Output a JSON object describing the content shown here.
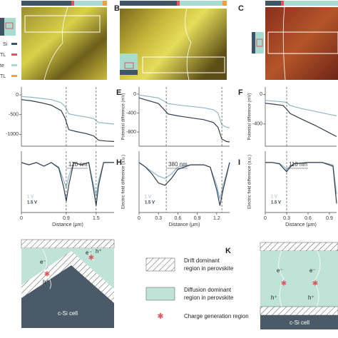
{
  "panel_labels": [
    "B",
    "C",
    "E",
    "F",
    "H",
    "I",
    "K"
  ],
  "layer_legend": [
    "Si",
    "TL",
    "te",
    "TL"
  ],
  "diagram": {
    "left": {
      "cell": "c-Si cell",
      "carriers": [
        "e⁻",
        "h⁺",
        "e⁻",
        "h⁺"
      ]
    },
    "right": {
      "cell": "c-Si cell",
      "carriers": [
        "e⁻",
        "h⁺",
        "e⁻",
        "h⁺"
      ]
    },
    "legend": [
      [
        "Drift dominant",
        "region in perovskite"
      ],
      [
        "Diffusion dominant",
        "region in perovskite"
      ],
      [
        "Charge generation region"
      ]
    ]
  },
  "chart_data": [
    {
      "type": "line",
      "x": [
        0,
        0.2,
        0.4,
        0.6,
        0.8,
        0.88,
        0.95,
        1.1,
        1.3,
        1.45,
        1.55,
        1.7,
        1.86
      ],
      "series": [
        {
          "color": "#8fb7c9",
          "values": [
            -40,
            -60,
            -90,
            -120,
            -200,
            -300,
            -480,
            -520,
            -560,
            -600,
            -700,
            -720,
            -740
          ]
        },
        {
          "color": "#2f3d4f",
          "values": [
            -120,
            -150,
            -200,
            -260,
            -400,
            -600,
            -880,
            -930,
            -980,
            -1040,
            -1150,
            -1170,
            -1180
          ]
        }
      ],
      "xlim": [
        0,
        1.86
      ],
      "ylim": [
        -1300,
        200
      ],
      "yticks": [
        0,
        -500,
        -1000
      ],
      "markers": [
        0.9,
        1.5
      ]
    },
    {
      "type": "line",
      "ylabel": "Potential difference (mV)",
      "x": [
        0,
        0.1,
        0.3,
        0.45,
        0.6,
        0.8,
        1.0,
        1.15,
        1.22,
        1.28,
        1.35,
        1.4
      ],
      "series": [
        {
          "color": "#8fb7c9",
          "values": [
            -20,
            -40,
            -80,
            -200,
            -230,
            -260,
            -290,
            -330,
            -400,
            -650,
            -700,
            -710
          ]
        },
        {
          "color": "#2f3d4f",
          "values": [
            -80,
            -120,
            -200,
            -420,
            -460,
            -500,
            -540,
            -600,
            -700,
            -950,
            -1000,
            -1010
          ]
        }
      ],
      "xlim": [
        0,
        1.4
      ],
      "ylim": [
        -1100,
        150
      ],
      "yticks": [
        0,
        -400,
        -800
      ],
      "markers": [
        0.42,
        1.28
      ]
    },
    {
      "type": "line",
      "ylabel": "Potential difference (mV)",
      "x": [
        0,
        0.1,
        0.25,
        0.3,
        0.35,
        0.5,
        0.7,
        0.9,
        1.0
      ],
      "series": [
        {
          "color": "#8fb7c9",
          "values": [
            -80,
            -90,
            -100,
            -110,
            -150,
            -190,
            -230,
            -270,
            -290
          ]
        },
        {
          "color": "#2f3d4f",
          "values": [
            -120,
            -130,
            -150,
            -200,
            -260,
            -330,
            -420,
            -520,
            -570
          ]
        }
      ],
      "xlim": [
        0,
        1.0
      ],
      "ylim": [
        -700,
        100
      ],
      "yticks": [
        0,
        -400
      ],
      "markers": [
        0.3
      ]
    },
    {
      "type": "line",
      "xlabel": "Distance (μm)",
      "annotation": "120 nm",
      "x": [
        0,
        0.15,
        0.3,
        0.45,
        0.6,
        0.75,
        0.85,
        0.9,
        0.95,
        1.05,
        1.2,
        1.35,
        1.45,
        1.5,
        1.55,
        1.65,
        1.86
      ],
      "series": [
        {
          "name": "1 V",
          "color": "#8fb7c9",
          "values": [
            0,
            -0.05,
            0,
            -0.08,
            0,
            -0.1,
            -0.4,
            -0.55,
            -0.3,
            0,
            -0.05,
            0,
            -0.5,
            -0.75,
            -0.4,
            0,
            0
          ]
        },
        {
          "name": "1.5 V",
          "color": "#2f3d4f",
          "values": [
            0,
            -0.05,
            0,
            -0.08,
            0,
            -0.12,
            -0.55,
            -0.85,
            -0.5,
            0,
            -0.05,
            0,
            -0.6,
            -0.95,
            -0.5,
            0,
            0
          ]
        }
      ],
      "xlim": [
        0,
        1.86
      ],
      "ylim": [
        -1.1,
        0.25
      ],
      "xticks": [
        0,
        0.9,
        1.5
      ],
      "markers": [
        0.9,
        1.5
      ]
    },
    {
      "type": "line",
      "ylabel": "Electric field difference (a.u.)",
      "xlabel": "Distance (μm)",
      "annotation": "380 nm",
      "x": [
        0,
        0.1,
        0.2,
        0.3,
        0.4,
        0.5,
        0.6,
        0.8,
        1.0,
        1.1,
        1.2,
        1.25,
        1.3,
        1.4
      ],
      "series": [
        {
          "name": "1 V",
          "color": "#8fb7c9",
          "values": [
            0,
            -0.1,
            -0.2,
            -0.3,
            -0.35,
            -0.25,
            -0.1,
            -0.05,
            -0.05,
            -0.1,
            -0.5,
            -0.8,
            -0.5,
            0
          ]
        },
        {
          "name": "1.5 V",
          "color": "#2f3d4f",
          "values": [
            0,
            -0.1,
            -0.25,
            -0.45,
            -0.5,
            -0.35,
            -0.15,
            -0.05,
            -0.05,
            -0.1,
            -0.6,
            -0.95,
            -0.6,
            0
          ]
        }
      ],
      "xlim": [
        0,
        1.4
      ],
      "ylim": [
        -1.1,
        0.25
      ],
      "xticks": [
        0,
        0.3,
        0.6,
        0.9,
        1.2
      ],
      "markers": [
        0.42,
        1.28
      ]
    },
    {
      "type": "line",
      "ylabel": "Electric field difference (a.u.)",
      "xlabel": "Distance (μm)",
      "annotation": "110 nm",
      "x": [
        0,
        0.1,
        0.2,
        0.25,
        0.3,
        0.35,
        0.4,
        0.6,
        0.8,
        0.95,
        1.0
      ],
      "series": [
        {
          "name": "1 V",
          "color": "#8fb7c9",
          "values": [
            0,
            0,
            -0.02,
            -0.08,
            -0.15,
            -0.08,
            -0.02,
            0,
            0,
            -0.05,
            -0.7
          ]
        },
        {
          "name": "1.5 V",
          "color": "#2f3d4f",
          "values": [
            0,
            0,
            -0.03,
            -0.12,
            -0.2,
            -0.1,
            -0.03,
            0,
            0,
            -0.08,
            -0.9
          ]
        }
      ],
      "xlim": [
        0,
        1.0
      ],
      "ylim": [
        -1.1,
        0.25
      ],
      "xticks": [
        0,
        0.3,
        0.6,
        0.9
      ],
      "markers": [
        0.3
      ]
    }
  ]
}
